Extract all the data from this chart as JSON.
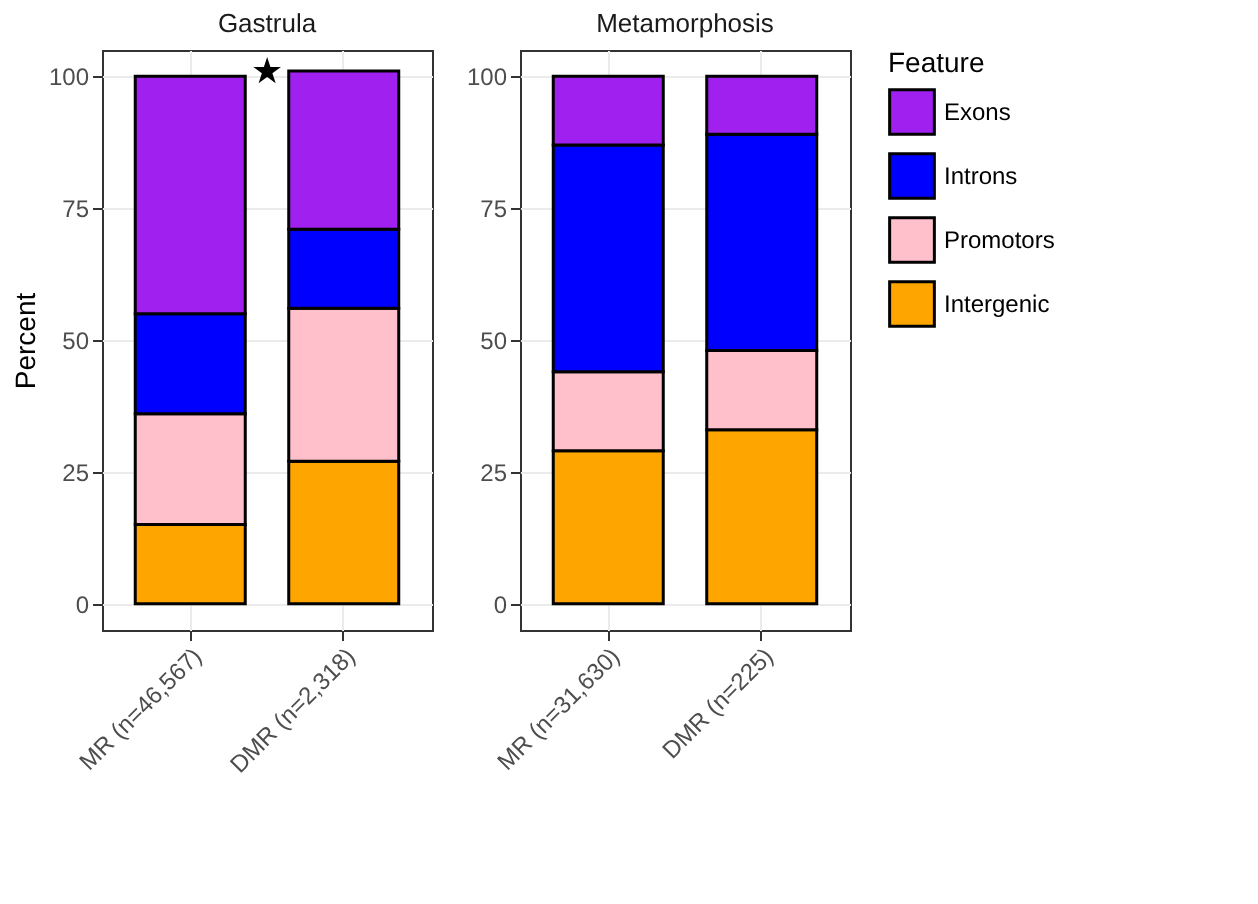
{
  "chart_data": [
    {
      "type": "bar",
      "title": "Gastrula",
      "ylabel": "Percent",
      "stacked": true,
      "categories": [
        "MR (n=46,567)",
        "DMR (n=2,318)"
      ],
      "series": [
        {
          "name": "Intergenic",
          "color": "#ffa500",
          "values": [
            15,
            27
          ]
        },
        {
          "name": "Promotors",
          "color": "#ffc0cb",
          "values": [
            21,
            29
          ]
        },
        {
          "name": "Introns",
          "color": "#0000ff",
          "values": [
            19,
            15
          ]
        },
        {
          "name": "Exons",
          "color": "#a020f0",
          "values": [
            45,
            30
          ]
        }
      ],
      "ylim": [
        -5,
        105
      ],
      "yticks": [
        0,
        25,
        50,
        75,
        100
      ],
      "grid": true,
      "legend": "right",
      "annotations": [
        "★"
      ]
    },
    {
      "type": "bar",
      "title": "Metamorphosis",
      "stacked": true,
      "categories": [
        "MR (n=31,630)",
        "DMR (n=225)"
      ],
      "series": [
        {
          "name": "Intergenic",
          "color": "#ffa500",
          "values": [
            29,
            33
          ]
        },
        {
          "name": "Promotors",
          "color": "#ffc0cb",
          "values": [
            15,
            15
          ]
        },
        {
          "name": "Introns",
          "color": "#0000ff",
          "values": [
            43,
            41
          ]
        },
        {
          "name": "Exons",
          "color": "#a020f0",
          "values": [
            13,
            11
          ]
        }
      ],
      "ylim": [
        -5,
        105
      ],
      "yticks": [
        0,
        25,
        50,
        75,
        100
      ],
      "grid": true,
      "legend": "right",
      "legend_title": "Feature"
    }
  ]
}
